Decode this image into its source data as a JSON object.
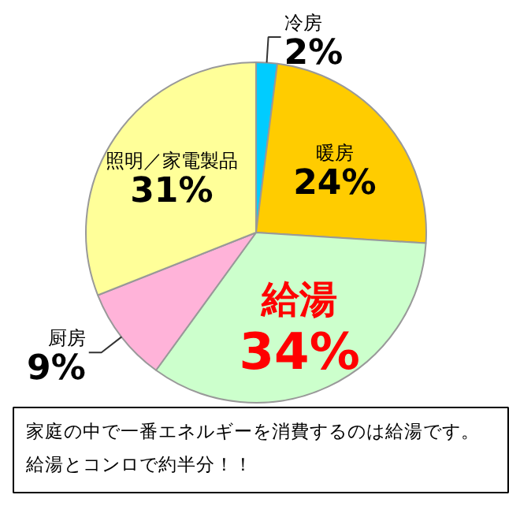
{
  "chart_data": {
    "type": "pie",
    "categories": [
      "冷房",
      "暖房",
      "給湯",
      "厨房",
      "照明／家電製品"
    ],
    "values": [
      2,
      24,
      34,
      9,
      31
    ],
    "colors": [
      "#00ccff",
      "#ffcc00",
      "#ccffcc",
      "#ffb3d9",
      "#ffff99"
    ],
    "value_labels": [
      "2%",
      "24%",
      "34%",
      "9%",
      "31%"
    ],
    "annotations": [
      "家庭の中で一番エネルギーを消費するのは給湯です。給湯とコンロで約半分！！"
    ]
  }
}
